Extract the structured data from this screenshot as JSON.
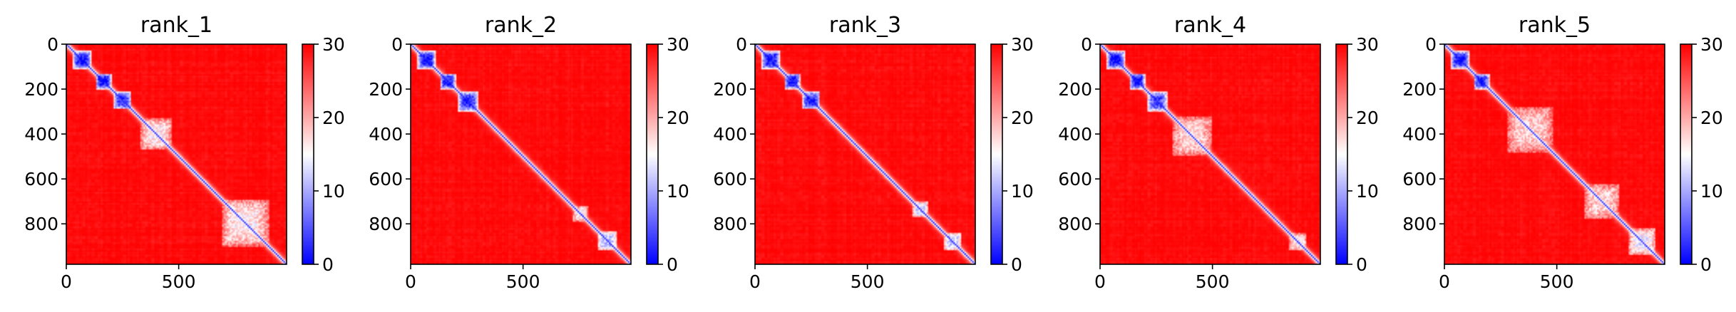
{
  "chart_data": [
    {
      "type": "heatmap",
      "title": "rank_1",
      "xlabel": "",
      "ylabel": "",
      "xlim": [
        0,
        980
      ],
      "ylim": [
        980,
        0
      ],
      "x_ticks": [
        0,
        500
      ],
      "y_ticks": [
        0,
        200,
        400,
        600,
        800
      ],
      "colorbar": {
        "range": [
          0,
          30
        ],
        "ticks": [
          0,
          10,
          20,
          30
        ],
        "colors": [
          "#0000ff",
          "#ffffff",
          "#ff0000"
        ]
      },
      "low_blocks": [
        {
          "start": 30,
          "end": 110,
          "strength": 0.95
        },
        {
          "start": 130,
          "end": 200,
          "strength": 0.95
        },
        {
          "start": 210,
          "end": 290,
          "strength": 0.9
        },
        {
          "start": 330,
          "end": 470,
          "strength": 0.45
        },
        {
          "start": 690,
          "end": 900,
          "strength": 0.45
        }
      ]
    },
    {
      "type": "heatmap",
      "title": "rank_2",
      "xlabel": "",
      "ylabel": "",
      "xlim": [
        0,
        980
      ],
      "ylim": [
        980,
        0
      ],
      "x_ticks": [
        0,
        500
      ],
      "y_ticks": [
        0,
        200,
        400,
        600,
        800
      ],
      "colorbar": {
        "range": [
          0,
          30
        ],
        "ticks": [
          0,
          10,
          20,
          30
        ],
        "colors": [
          "#0000ff",
          "#ffffff",
          "#ff0000"
        ]
      },
      "low_blocks": [
        {
          "start": 30,
          "end": 110,
          "strength": 0.95
        },
        {
          "start": 130,
          "end": 200,
          "strength": 0.95
        },
        {
          "start": 210,
          "end": 300,
          "strength": 0.9
        },
        {
          "start": 720,
          "end": 790,
          "strength": 0.45
        },
        {
          "start": 830,
          "end": 920,
          "strength": 0.6
        }
      ]
    },
    {
      "type": "heatmap",
      "title": "rank_3",
      "xlabel": "",
      "ylabel": "",
      "xlim": [
        0,
        980
      ],
      "ylim": [
        980,
        0
      ],
      "x_ticks": [
        0,
        500
      ],
      "y_ticks": [
        0,
        200,
        400,
        600,
        800
      ],
      "colorbar": {
        "range": [
          0,
          30
        ],
        "ticks": [
          0,
          10,
          20,
          30
        ],
        "colors": [
          "#0000ff",
          "#ffffff",
          "#ff0000"
        ]
      },
      "low_blocks": [
        {
          "start": 30,
          "end": 110,
          "strength": 0.95
        },
        {
          "start": 130,
          "end": 200,
          "strength": 0.95
        },
        {
          "start": 210,
          "end": 290,
          "strength": 0.9
        },
        {
          "start": 700,
          "end": 770,
          "strength": 0.6
        },
        {
          "start": 840,
          "end": 920,
          "strength": 0.6
        }
      ]
    },
    {
      "type": "heatmap",
      "title": "rank_4",
      "xlabel": "",
      "ylabel": "",
      "xlim": [
        0,
        980
      ],
      "ylim": [
        980,
        0
      ],
      "x_ticks": [
        0,
        500
      ],
      "y_ticks": [
        0,
        200,
        400,
        600,
        800
      ],
      "colorbar": {
        "range": [
          0,
          30
        ],
        "ticks": [
          0,
          10,
          20,
          30
        ],
        "colors": [
          "#0000ff",
          "#ffffff",
          "#ff0000"
        ]
      },
      "low_blocks": [
        {
          "start": 30,
          "end": 110,
          "strength": 0.95
        },
        {
          "start": 130,
          "end": 200,
          "strength": 0.95
        },
        {
          "start": 210,
          "end": 300,
          "strength": 0.85
        },
        {
          "start": 320,
          "end": 500,
          "strength": 0.4
        },
        {
          "start": 840,
          "end": 920,
          "strength": 0.45
        }
      ]
    },
    {
      "type": "heatmap",
      "title": "rank_5",
      "xlabel": "",
      "ylabel": "",
      "xlim": [
        0,
        980
      ],
      "ylim": [
        980,
        0
      ],
      "x_ticks": [
        0,
        500
      ],
      "y_ticks": [
        0,
        200,
        400,
        600,
        800
      ],
      "colorbar": {
        "range": [
          0,
          30
        ],
        "ticks": [
          0,
          10,
          20,
          30
        ],
        "colors": [
          "#0000ff",
          "#ffffff",
          "#ff0000"
        ]
      },
      "low_blocks": [
        {
          "start": 30,
          "end": 110,
          "strength": 0.95
        },
        {
          "start": 130,
          "end": 200,
          "strength": 0.9
        },
        {
          "start": 280,
          "end": 480,
          "strength": 0.4
        },
        {
          "start": 620,
          "end": 780,
          "strength": 0.4
        },
        {
          "start": 820,
          "end": 940,
          "strength": 0.5
        }
      ]
    }
  ]
}
